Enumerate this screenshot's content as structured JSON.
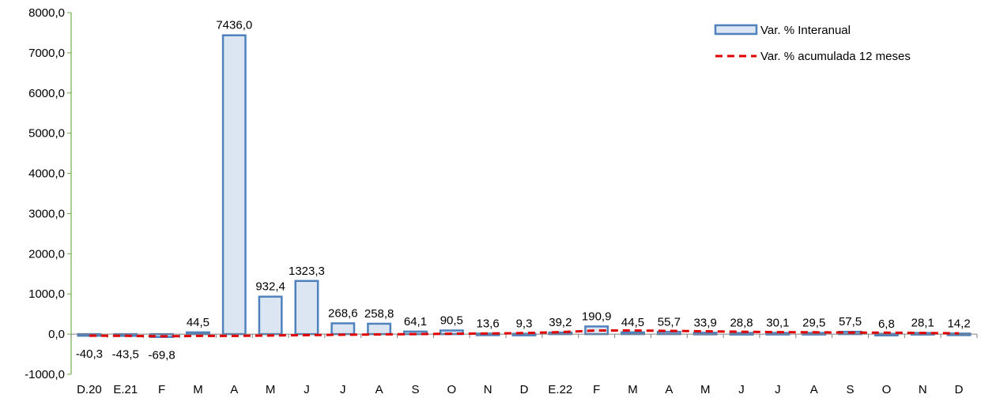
{
  "chart_data": {
    "type": "bar",
    "categories": [
      "D.20",
      "E.21",
      "F",
      "M",
      "A",
      "M",
      "J",
      "J",
      "A",
      "S",
      "O",
      "N",
      "D",
      "E.22",
      "F",
      "M",
      "A",
      "M",
      "J",
      "J",
      "A",
      "S",
      "O",
      "N",
      "D"
    ],
    "series": [
      {
        "name": "Var. % Interanual",
        "type": "bar",
        "values": [
          -40.3,
          -43.5,
          -69.8,
          44.5,
          7436.0,
          932.4,
          1323.3,
          268.6,
          258.8,
          64.1,
          90.5,
          13.6,
          9.3,
          39.2,
          190.9,
          44.5,
          55.7,
          33.9,
          28.8,
          30.1,
          29.5,
          57.5,
          6.8,
          28.1,
          14.2
        ],
        "labels": [
          "-40,3",
          "-43,5",
          "-69,8",
          "44,5",
          "7436,0",
          "932,4",
          "1323,3",
          "268,6",
          "258,8",
          "64,1",
          "90,5",
          "13,6",
          "9,3",
          "39,2",
          "190,9",
          "44,5",
          "55,7",
          "33,9",
          "28,8",
          "30,1",
          "29,5",
          "57,5",
          "6,8",
          "28,1",
          "14,2"
        ]
      },
      {
        "name": "Var. % acumulada 12 meses",
        "type": "line",
        "style": "dashed",
        "values": [
          -40,
          -43,
          -55,
          -45,
          -45,
          -35,
          -25,
          -15,
          -8,
          0,
          10,
          15,
          25,
          50,
          90,
          90,
          80,
          70,
          60,
          50,
          45,
          40,
          35,
          30,
          20
        ]
      }
    ],
    "ylim": [
      -1000,
      8000
    ],
    "yticks": [
      "-1000,0",
      "0,0",
      "1000,0",
      "2000,0",
      "3000,0",
      "4000,0",
      "5000,0",
      "6000,0",
      "7000,0",
      "8000,0"
    ],
    "ytick_values": [
      -1000,
      0,
      1000,
      2000,
      3000,
      4000,
      5000,
      6000,
      7000,
      8000
    ],
    "legend_position": "top-right",
    "grid": false,
    "colors": {
      "bar_fill": "#dce6f2",
      "bar_stroke": "#4f81bd",
      "line": "#e00000",
      "axis": "#70ad47",
      "xaxis": "#808080"
    }
  }
}
